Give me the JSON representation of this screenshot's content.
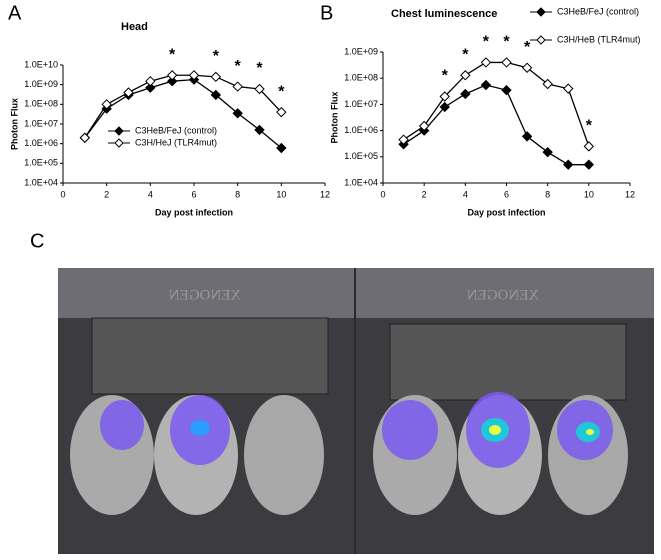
{
  "chart_data": [
    {
      "type": "line",
      "panel_label": "A",
      "title": "Head",
      "x_label": "Day post infection",
      "y_label": "Photon Flux",
      "yscale": "log",
      "legend": "lower center",
      "xlim": [
        0,
        12
      ],
      "xticks": [
        0,
        2,
        4,
        6,
        8,
        10,
        12
      ],
      "ylim": [
        10000,
        10000000000
      ],
      "yticks": [
        {
          "value": 10000,
          "label": "1.0E+04"
        },
        {
          "value": 100000,
          "label": "1.0E+05"
        },
        {
          "value": 1000000,
          "label": "1.0E+06"
        },
        {
          "value": 10000000,
          "label": "1.0E+07"
        },
        {
          "value": 100000000,
          "label": "1.0E+08"
        },
        {
          "value": 1000000000,
          "label": "1.0E+09"
        },
        {
          "value": 10000000000,
          "label": "1.0E+10"
        }
      ],
      "x": [
        1,
        2,
        3,
        4,
        5,
        6,
        7,
        8,
        9,
        10
      ],
      "series": [
        {
          "name": "C3HeB/FeJ (control)",
          "color": "#000000",
          "marker_fill": "#000000",
          "values": [
            2000000,
            60000000,
            300000000,
            700000000,
            1500000000,
            1800000000,
            300000000,
            35000000,
            5000000,
            600000
          ]
        },
        {
          "name": "C3H/HeJ (TLR4mut)",
          "color": "#000000",
          "marker_fill": "#ffffff",
          "values": [
            2000000,
            100000000,
            400000000,
            1500000000,
            3000000000,
            3000000000,
            2500000000,
            800000000,
            600000000,
            40000000
          ]
        }
      ],
      "annotations": [
        {
          "x": 5,
          "text": "*"
        },
        {
          "x": 7,
          "text": "*"
        },
        {
          "x": 8,
          "text": "*"
        },
        {
          "x": 9,
          "text": "*"
        },
        {
          "x": 10,
          "text": "*"
        }
      ]
    },
    {
      "type": "line",
      "panel_label": "B",
      "title": "Chest luminescence",
      "x_label": "Day post infection",
      "y_label": "Photon Flux",
      "yscale": "log",
      "legend": "upper right",
      "xlim": [
        0,
        12
      ],
      "xticks": [
        0,
        2,
        4,
        6,
        8,
        10,
        12
      ],
      "ylim": [
        10000,
        1000000000
      ],
      "yticks": [
        {
          "value": 10000,
          "label": "1.0E+04"
        },
        {
          "value": 100000,
          "label": "1.0E+05"
        },
        {
          "value": 1000000,
          "label": "1.0E+06"
        },
        {
          "value": 10000000,
          "label": "1.0E+07"
        },
        {
          "value": 100000000,
          "label": "1.0E+08"
        },
        {
          "value": 1000000000,
          "label": "1.0E+09"
        }
      ],
      "x": [
        1,
        2,
        3,
        4,
        5,
        6,
        7,
        8,
        9,
        10
      ],
      "series": [
        {
          "name": "C3HeB/FeJ (control)",
          "color": "#000000",
          "marker_fill": "#000000",
          "values": [
            300000,
            1000000,
            8000000,
            25000000,
            55000000,
            35000000,
            600000,
            150000,
            50000,
            50000
          ]
        },
        {
          "name": "C3H/HeB (TLR4mut)",
          "color": "#000000",
          "marker_fill": "#ffffff",
          "values": [
            450000,
            1500000,
            20000000,
            130000000,
            400000000,
            400000000,
            250000000,
            60000000,
            40000000,
            250000
          ]
        }
      ],
      "annotations": [
        {
          "x": 3,
          "text": "*"
        },
        {
          "x": 4,
          "text": "*"
        },
        {
          "x": 5,
          "text": "*"
        },
        {
          "x": 6,
          "text": "*"
        },
        {
          "x": 7,
          "text": "*"
        },
        {
          "x": 10,
          "text": "*"
        }
      ]
    }
  ],
  "image_panel": {
    "panel_label": "C",
    "watermark": "XENOGEN"
  }
}
